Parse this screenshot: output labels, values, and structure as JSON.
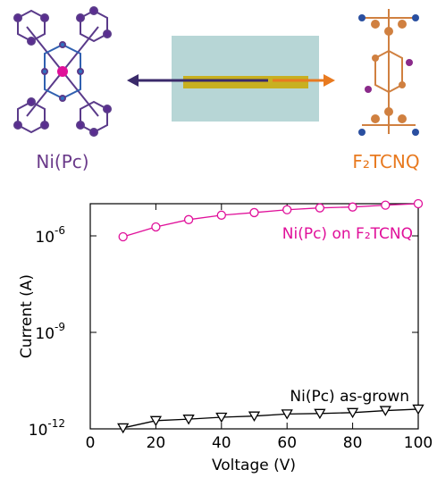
{
  "figure_labels": {
    "left_molecule": "Ni(Pc)",
    "right_molecule": "F₂TCNQ"
  },
  "chart_data": {
    "type": "line",
    "log_y": true,
    "x_label": "Voltage (V)",
    "y_label": "Current (A)",
    "xlim": [
      0,
      100
    ],
    "xticks": [
      0,
      20,
      40,
      60,
      80,
      100
    ],
    "ylim": [
      1e-12,
      1e-05
    ],
    "yticks": [
      {
        "value": 1e-12,
        "label": "10",
        "exponent": "-12"
      },
      {
        "value": 1e-09,
        "label": "10",
        "exponent": "-9"
      },
      {
        "value": 1e-06,
        "label": "10",
        "exponent": "-6"
      }
    ],
    "x": [
      10,
      20,
      30,
      40,
      50,
      60,
      70,
      80,
      90,
      100
    ],
    "series": [
      {
        "name": "Ni(Pc) on F₂TCNQ",
        "color": "#e0109a",
        "marker": "circle",
        "values": [
          9.4e-07,
          1.9e-06,
          3.2e-06,
          4.4e-06,
          5.3e-06,
          6.5e-06,
          7.4e-06,
          7.9e-06,
          9e-06,
          1e-05
        ]
      },
      {
        "name": "Ni(Pc) as-grown",
        "color": "#000000",
        "marker": "triangle-down",
        "values": [
          1.07e-12,
          1.8e-12,
          2e-12,
          2.3e-12,
          2.5e-12,
          2.9e-12,
          3e-12,
          3.2e-12,
          3.7e-12,
          4.1e-12
        ]
      }
    ]
  }
}
